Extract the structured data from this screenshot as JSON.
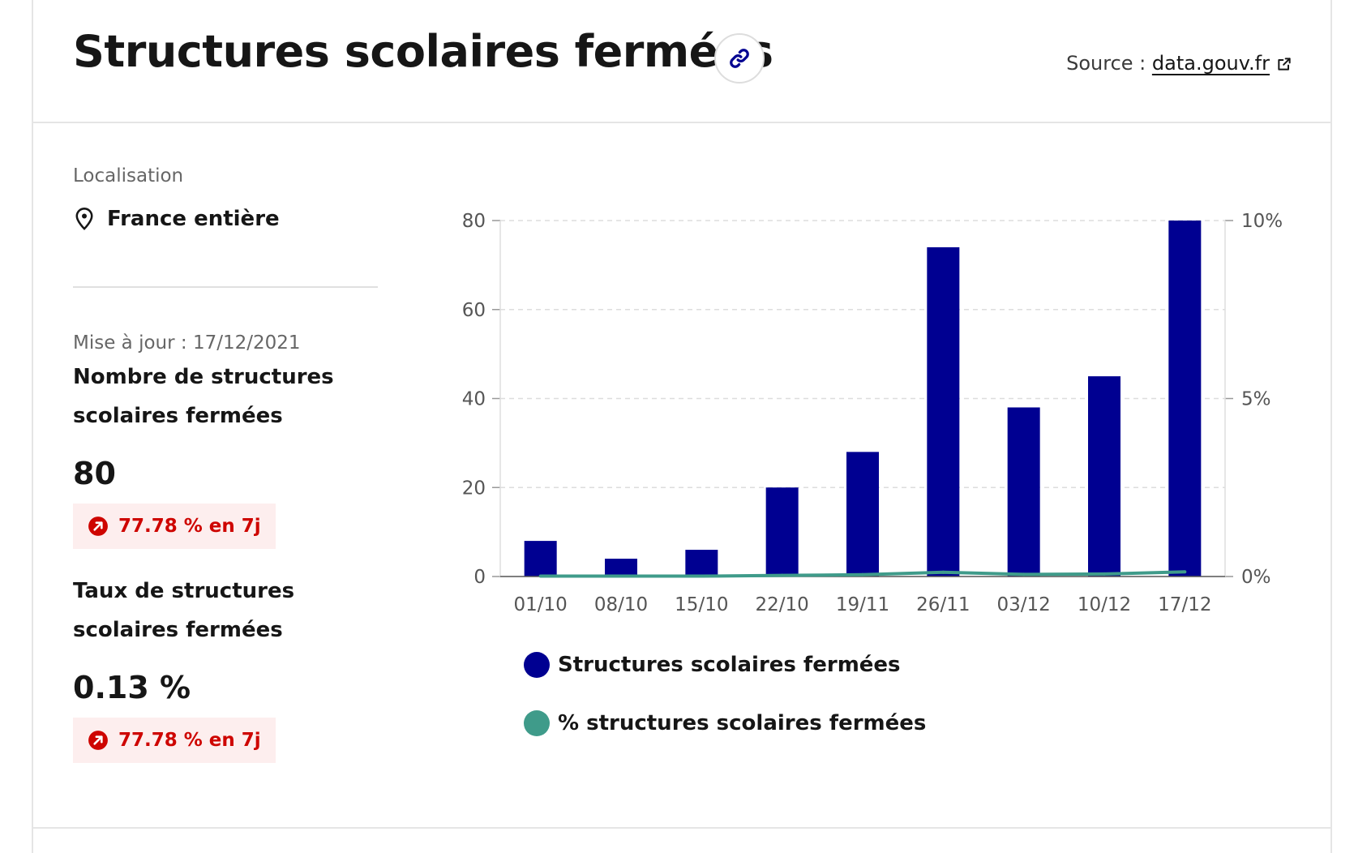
{
  "header": {
    "title": "Structures scolaires fermées",
    "source_prefix": "Source :",
    "source_link": "data.gouv.fr",
    "link_icon": "link-icon",
    "external_icon": "external-link-icon"
  },
  "sidebar": {
    "location_label": "Localisation",
    "location_value": "France entière",
    "location_icon": "map-pin-icon",
    "update": "Mise à jour : 17/12/2021",
    "kpis": [
      {
        "label": "Nombre de structures scolaires fermées",
        "value": "80",
        "change": "77.78 % en 7j",
        "change_icon": "arrow-up-right-icon"
      },
      {
        "label": "Taux de structures scolaires fermées",
        "value": "0.13 %",
        "change": "77.78 % en 7j",
        "change_icon": "arrow-up-right-icon"
      }
    ]
  },
  "colors": {
    "bar": "#000091",
    "line": "#3f9b8a",
    "badge_text": "#ce0500",
    "badge_bg": "#fdeeee"
  },
  "chart_data": {
    "type": "bar",
    "categories": [
      "01/10",
      "08/10",
      "15/10",
      "22/10",
      "19/11",
      "26/11",
      "03/12",
      "10/12",
      "17/12"
    ],
    "series": [
      {
        "name": "Structures scolaires fermées",
        "type": "bar",
        "axis": "left",
        "values": [
          8,
          4,
          6,
          20,
          28,
          74,
          38,
          45,
          80
        ]
      },
      {
        "name": "% structures scolaires fermées",
        "type": "line",
        "axis": "right",
        "values": [
          0.01,
          0.01,
          0.01,
          0.03,
          0.05,
          0.12,
          0.06,
          0.07,
          0.13
        ]
      }
    ],
    "y_left": {
      "min": 0,
      "max": 80,
      "ticks": [
        0,
        20,
        40,
        60,
        80
      ],
      "tick_labels": [
        "0",
        "20",
        "40",
        "60",
        "80"
      ]
    },
    "y_right": {
      "min": 0,
      "max": 10,
      "ticks": [
        0,
        5,
        10
      ],
      "tick_labels": [
        "0%",
        "5%",
        "10%"
      ]
    },
    "grid": true,
    "legend_position": "bottom-left"
  }
}
